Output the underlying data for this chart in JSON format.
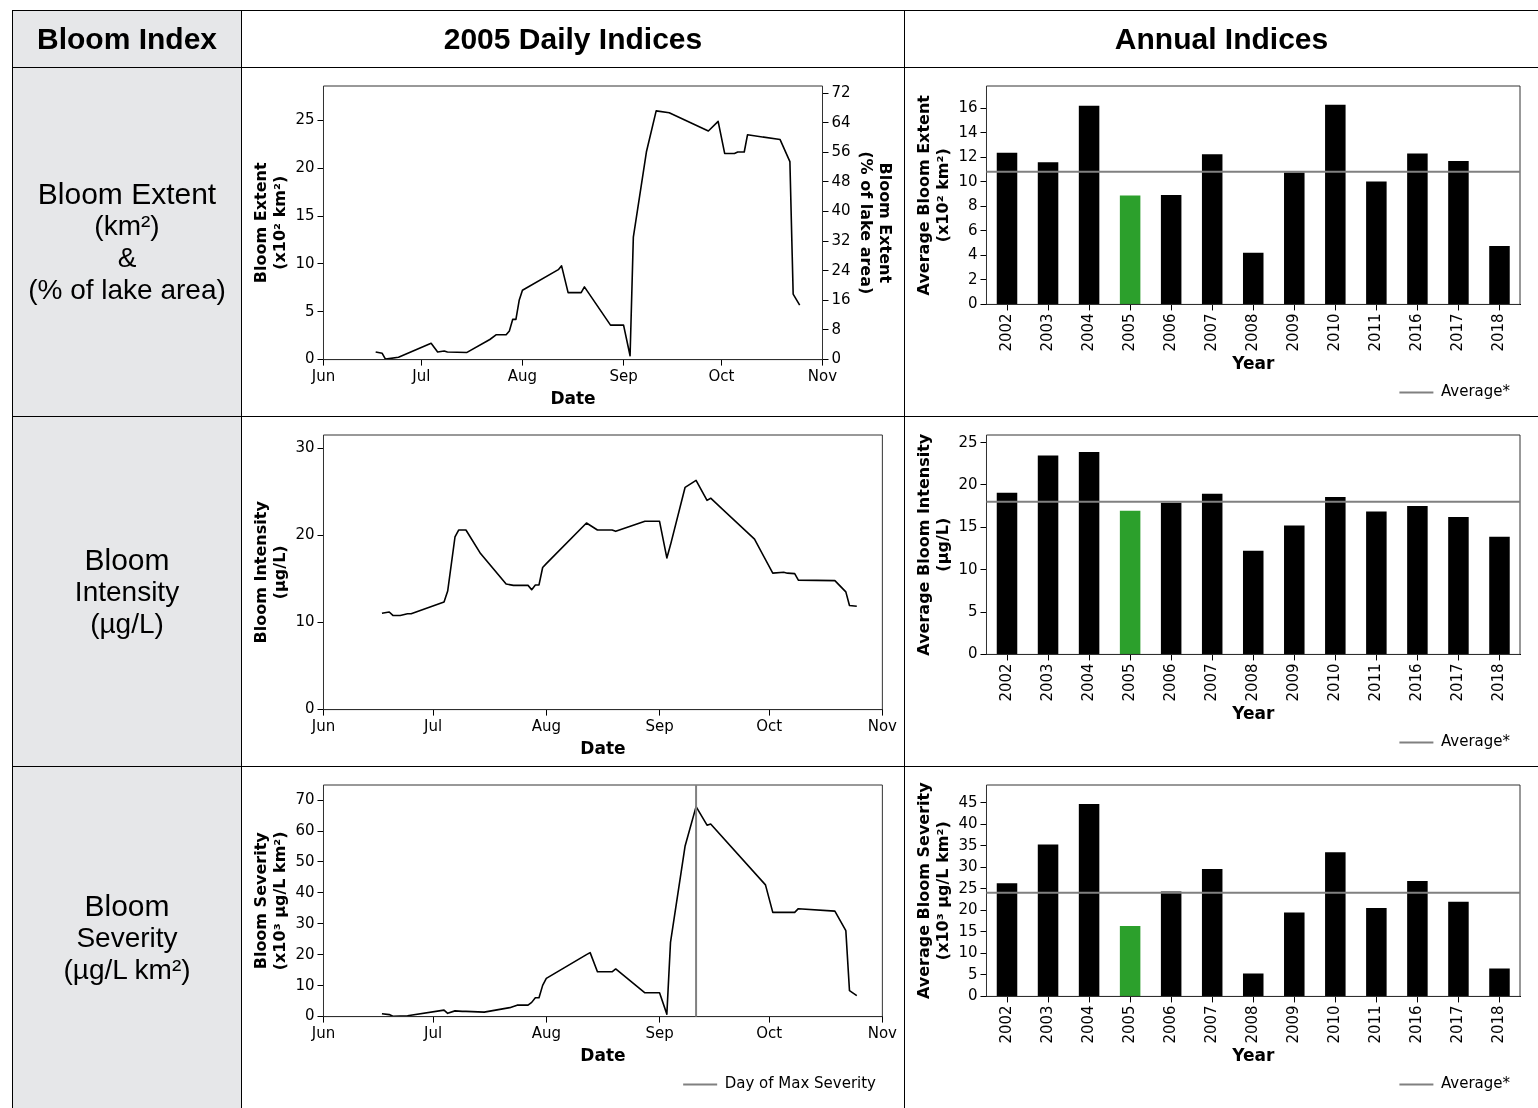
{
  "chart_data": [
    {
      "type": "other",
      "annotations": [
        "Bloom Index",
        "2005 Daily Indices",
        "Annual Indices"
      ]
    },
    {
      "type": "other",
      "annotations": [
        "Bloom Extent",
        "(km²)",
        "&",
        "(% of lake area)"
      ]
    },
    {
      "type": "line",
      "xlabel": "Date",
      "ylabel": "Bloom Extent (x10² km²)",
      "y2label": "Bloom Extent (% of lake area)",
      "color": "#000000",
      "marker": "none",
      "line_style": "solid",
      "grid": false,
      "legend": false,
      "x": [
        "2005-06-17",
        "2005-06-19",
        "2005-06-20",
        "2005-06-24",
        "2005-07-04",
        "2005-07-06",
        "2005-07-08",
        "2005-07-09",
        "2005-07-15",
        "2005-07-22",
        "2005-07-24",
        "2005-07-27",
        "2005-07-28",
        "2005-07-29",
        "2005-07-30",
        "2005-07-31",
        "2005-08-01",
        "2005-08-12",
        "2005-08-13",
        "2005-08-15",
        "2005-08-19",
        "2005-08-20",
        "2005-08-28",
        "2005-09-01",
        "2005-09-03",
        "2005-09-04",
        "2005-09-08",
        "2005-09-11",
        "2005-09-15",
        "2005-09-27",
        "2005-09-30",
        "2005-10-02",
        "2005-10-05",
        "2005-10-06",
        "2005-10-08",
        "2005-10-09",
        "2005-10-19",
        "2005-10-22",
        "2005-10-23",
        "2005-10-25"
      ],
      "values": [
        0.8,
        0.66,
        0.05,
        0.25,
        1.7,
        0.8,
        0.9,
        0.8,
        0.75,
        2.1,
        2.6,
        2.6,
        3.0,
        4.2,
        4.2,
        6.2,
        7.25,
        9.4,
        9.8,
        7.0,
        7.0,
        7.6,
        3.6,
        3.6,
        0.4,
        12.8,
        21.7,
        26.0,
        25.8,
        23.9,
        24.9,
        21.55,
        21.55,
        21.7,
        21.7,
        23.5,
        23.0,
        20.7,
        6.85,
        5.7
      ],
      "xlim": [
        "2005-06-01",
        "2005-11-01"
      ],
      "xticks": [
        {
          "value": "2005-06-01",
          "label": "Jun"
        },
        {
          "value": "2005-07-01",
          "label": "Jul"
        },
        {
          "value": "2005-08-01",
          "label": "Aug"
        },
        {
          "value": "2005-09-01",
          "label": "Sep"
        },
        {
          "value": "2005-10-01",
          "label": "Oct"
        },
        {
          "value": "2005-11-01",
          "label": "Nov"
        }
      ],
      "ylim": [
        0,
        28.6
      ],
      "yticks": [
        0,
        5,
        10,
        15,
        20,
        25
      ],
      "y2lim": [
        0,
        73.9
      ],
      "y2ticks": [
        0,
        8,
        16,
        24,
        32,
        40,
        48,
        56,
        64,
        72
      ]
    },
    {
      "type": "bar",
      "xlabel": "Year",
      "ylabel": "Average Bloom Extent (x10² km²)",
      "grid": false,
      "legend": "bottom right",
      "categories": [
        "2002",
        "2003",
        "2004",
        "2005",
        "2006",
        "2007",
        "2008",
        "2009",
        "2010",
        "2011",
        "2016",
        "2017",
        "2018"
      ],
      "values": [
        12.37,
        11.58,
        16.2,
        8.88,
        8.92,
        12.23,
        4.22,
        10.75,
        16.28,
        10.02,
        12.3,
        11.68,
        4.77
      ],
      "colors": [
        "#000000",
        "#000000",
        "#000000",
        "#2ca02c",
        "#000000",
        "#000000",
        "#000000",
        "#000000",
        "#000000",
        "#000000",
        "#000000",
        "#000000",
        "#000000"
      ],
      "ylim": [
        0,
        17.8
      ],
      "yticks": [
        0,
        2,
        4,
        6,
        8,
        10,
        12,
        14,
        16
      ],
      "ref_lines": [
        {
          "axis": "y",
          "value": 10.82,
          "label": "Average*",
          "color": "#808080"
        }
      ]
    },
    {
      "type": "other",
      "annotations": [
        "Bloom",
        "Intensity",
        "(µg/L)"
      ]
    },
    {
      "type": "line",
      "xlabel": "Date",
      "ylabel": "Bloom Intensity (μg/L)",
      "color": "#000000",
      "marker": "none",
      "line_style": "solid",
      "grid": false,
      "legend": false,
      "x": [
        "2005-06-17",
        "2005-06-19",
        "2005-06-20",
        "2005-06-22",
        "2005-06-24",
        "2005-06-25",
        "2005-07-04",
        "2005-07-05",
        "2005-07-07",
        "2005-07-08",
        "2005-07-10",
        "2005-07-14",
        "2005-07-21",
        "2005-07-23",
        "2005-07-27",
        "2005-07-28",
        "2005-07-29",
        "2005-07-30",
        "2005-07-31",
        "2005-08-01",
        "2005-08-12",
        "2005-08-15",
        "2005-08-19",
        "2005-08-20",
        "2005-08-28",
        "2005-09-01",
        "2005-09-03",
        "2005-09-04",
        "2005-09-08",
        "2005-09-11",
        "2005-09-14",
        "2005-09-15",
        "2005-09-27",
        "2005-10-02",
        "2005-10-05",
        "2005-10-06",
        "2005-10-08",
        "2005-10-09",
        "2005-10-19",
        "2005-10-22",
        "2005-10-23",
        "2005-10-25"
      ],
      "values": [
        11.06,
        11.2,
        10.8,
        10.8,
        11.0,
        11.0,
        12.35,
        13.6,
        19.8,
        20.6,
        20.6,
        17.9,
        14.4,
        14.25,
        14.25,
        13.75,
        14.3,
        14.3,
        16.3,
        16.75,
        21.4,
        20.6,
        20.6,
        20.45,
        21.6,
        21.6,
        17.4,
        18.9,
        25.5,
        26.3,
        24.0,
        24.25,
        19.55,
        15.65,
        15.75,
        15.65,
        15.6,
        14.85,
        14.8,
        13.5,
        11.95,
        11.85
      ],
      "xlim": [
        "2005-06-01",
        "2005-11-01"
      ],
      "xticks": [
        {
          "value": "2005-06-01",
          "label": "Jun"
        },
        {
          "value": "2005-07-01",
          "label": "Jul"
        },
        {
          "value": "2005-08-01",
          "label": "Aug"
        },
        {
          "value": "2005-09-01",
          "label": "Sep"
        },
        {
          "value": "2005-10-01",
          "label": "Oct"
        },
        {
          "value": "2005-11-01",
          "label": "Nov"
        }
      ],
      "ylim": [
        0,
        31.5
      ],
      "yticks": [
        0,
        10,
        20,
        30
      ]
    },
    {
      "type": "bar",
      "xlabel": "Year",
      "ylabel": "Average Bloom Intensity (μg/L)",
      "grid": false,
      "legend": "bottom right",
      "categories": [
        "2002",
        "2003",
        "2004",
        "2005",
        "2006",
        "2007",
        "2008",
        "2009",
        "2010",
        "2011",
        "2016",
        "2017",
        "2018"
      ],
      "values": [
        19.08,
        23.49,
        23.9,
        16.97,
        17.9,
        18.98,
        12.25,
        15.21,
        18.57,
        16.87,
        17.52,
        16.21,
        13.9
      ],
      "colors": [
        "#000000",
        "#000000",
        "#000000",
        "#2ca02c",
        "#000000",
        "#000000",
        "#000000",
        "#000000",
        "#000000",
        "#000000",
        "#000000",
        "#000000",
        "#000000"
      ],
      "ylim": [
        0,
        25.9
      ],
      "yticks": [
        0,
        5,
        10,
        15,
        20,
        25
      ],
      "ref_lines": [
        {
          "axis": "y",
          "value": 18.02,
          "label": "Average*",
          "color": "#808080"
        }
      ]
    },
    {
      "type": "other",
      "annotations": [
        "Bloom",
        "Severity",
        "(µg/L km²)"
      ]
    },
    {
      "type": "line",
      "xlabel": "Date",
      "ylabel": "Bloom Severity (x10³ μg/L km²)",
      "color": "#000000",
      "marker": "none",
      "line_style": "solid",
      "grid": false,
      "legend": "bottom right",
      "x": [
        "2005-06-17",
        "2005-06-19",
        "2005-06-20",
        "2005-06-24",
        "2005-07-04",
        "2005-07-05",
        "2005-07-07",
        "2005-07-09",
        "2005-07-10",
        "2005-07-15",
        "2005-07-22",
        "2005-07-24",
        "2005-07-27",
        "2005-07-28",
        "2005-07-29",
        "2005-07-30",
        "2005-07-31",
        "2005-08-01",
        "2005-08-12",
        "2005-08-13",
        "2005-08-15",
        "2005-08-19",
        "2005-08-20",
        "2005-08-28",
        "2005-09-01",
        "2005-09-03",
        "2005-09-04",
        "2005-09-08",
        "2005-09-11",
        "2005-09-14",
        "2005-09-15",
        "2005-09-30",
        "2005-10-02",
        "2005-10-05",
        "2005-10-08",
        "2005-10-09",
        "2005-10-19",
        "2005-10-22",
        "2005-10-23",
        "2005-10-25"
      ],
      "values": [
        0.9,
        0.65,
        0.1,
        0.25,
        2.1,
        1.05,
        1.85,
        1.7,
        1.7,
        1.45,
        2.9,
        3.7,
        3.7,
        4.6,
        6.1,
        6.1,
        10.1,
        12.35,
        20.05,
        20.7,
        14.5,
        14.5,
        15.4,
        7.7,
        7.7,
        0.8,
        24.0,
        55.2,
        67.9,
        61.9,
        62.3,
        42.6,
        33.7,
        33.7,
        33.7,
        34.9,
        34.1,
        27.8,
        8.4,
        6.8
      ],
      "xlim": [
        "2005-06-01",
        "2005-11-01"
      ],
      "xticks": [
        {
          "value": "2005-06-01",
          "label": "Jun"
        },
        {
          "value": "2005-07-01",
          "label": "Jul"
        },
        {
          "value": "2005-08-01",
          "label": "Aug"
        },
        {
          "value": "2005-09-01",
          "label": "Sep"
        },
        {
          "value": "2005-10-01",
          "label": "Oct"
        },
        {
          "value": "2005-11-01",
          "label": "Nov"
        }
      ],
      "ylim": [
        0,
        74.9
      ],
      "yticks": [
        0,
        10,
        20,
        30,
        40,
        50,
        60,
        70
      ],
      "ref_lines": [
        {
          "axis": "x",
          "value": "2005-09-11",
          "label": "Day of Max Severity",
          "color": "#808080"
        }
      ]
    },
    {
      "type": "bar",
      "xlabel": "Year",
      "ylabel": "Average Bloom Severity (x10³ μg/L km²)",
      "grid": false,
      "legend": "bottom right",
      "categories": [
        "2002",
        "2003",
        "2004",
        "2005",
        "2006",
        "2007",
        "2008",
        "2009",
        "2010",
        "2011",
        "2016",
        "2017",
        "2018"
      ],
      "values": [
        26.26,
        35.3,
        44.7,
        16.37,
        24.36,
        29.6,
        5.33,
        19.5,
        33.5,
        20.55,
        26.83,
        21.98,
        6.47
      ],
      "colors": [
        "#000000",
        "#000000",
        "#000000",
        "#2ca02c",
        "#000000",
        "#000000",
        "#000000",
        "#000000",
        "#000000",
        "#000000",
        "#000000",
        "#000000",
        "#000000"
      ],
      "ylim": [
        0,
        49.1
      ],
      "yticks": [
        0,
        5,
        10,
        15,
        20,
        25,
        30,
        35,
        40,
        45
      ],
      "ref_lines": [
        {
          "axis": "y",
          "value": 24.07,
          "label": "Average*",
          "color": "#808080"
        }
      ]
    }
  ]
}
